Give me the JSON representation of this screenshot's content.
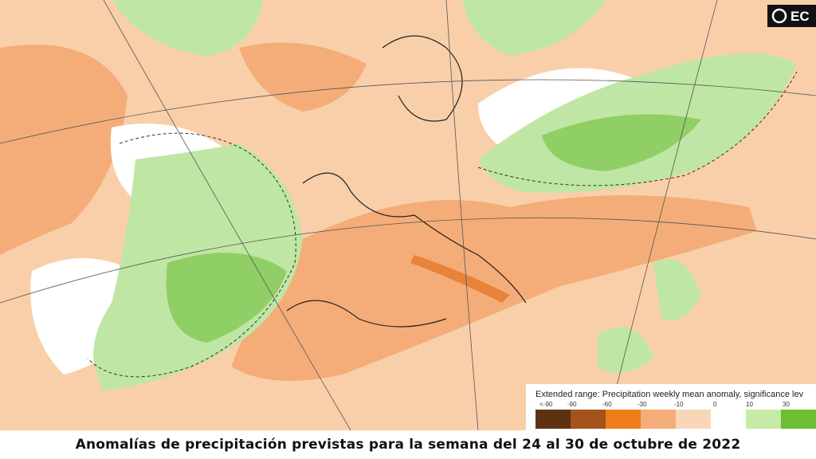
{
  "logo": "EC",
  "legend": {
    "title": "Extended range: Precipitation weekly mean anomaly, significance lev",
    "labels": [
      "<-90",
      "-90",
      "-60",
      "-30",
      "-10",
      "0",
      "10",
      "30"
    ]
  },
  "caption": "Anomalías de precipitación previstas para la semana del 24 al 30 de octubre de 2022"
}
